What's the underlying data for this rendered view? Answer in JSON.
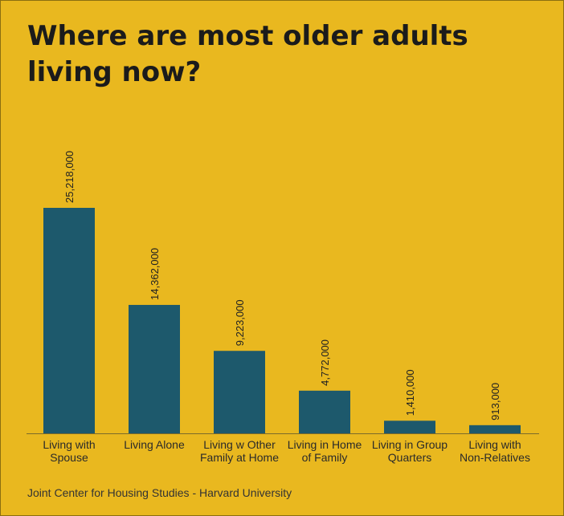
{
  "title": "Where are most older adults living now?",
  "source": "Joint Center for Housing Studies - Harvard University",
  "colors": {
    "background": "#e9b81f",
    "bar": "#1d596c",
    "axis": "#7a6a2a",
    "label": "#222222"
  },
  "chart_data": {
    "type": "bar",
    "categories": [
      [
        "Living with",
        "Spouse"
      ],
      [
        "Living Alone"
      ],
      [
        "Living w Other",
        "Family at Home"
      ],
      [
        "Living in Home",
        "of Family"
      ],
      [
        "Living in Group",
        "Quarters"
      ],
      [
        "Living with",
        "Non-Relatives"
      ]
    ],
    "values": [
      25218000,
      14362000,
      9223000,
      4772000,
      1410000,
      913000
    ],
    "value_labels": [
      "25,218,000",
      "14,362,000",
      "9,223,000",
      "4,772,000",
      "1,410,000",
      "913,000"
    ],
    "ylim": [
      0,
      25218000
    ],
    "grid": false,
    "legend": "none"
  }
}
